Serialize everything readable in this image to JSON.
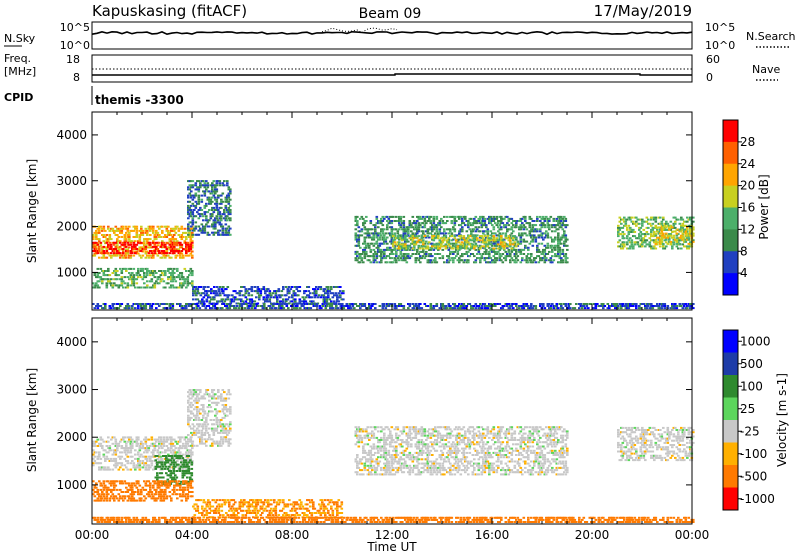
{
  "header": {
    "site": "Kapuskasing (fitACF)",
    "beam": "Beam 09",
    "date": "17/May/2019"
  },
  "param_panels": {
    "nsky": {
      "label": "N.Sky",
      "left_ticks": [
        "10^5",
        "10^0"
      ],
      "right_ticks": [
        "10^5",
        "10^0"
      ],
      "right_label": "N.Search"
    },
    "freq": {
      "label_line1": "Freq.",
      "label_line2": "[MHz]",
      "left_ticks": [
        "18",
        "8"
      ],
      "right_ticks": [
        "60",
        "0"
      ],
      "right_label": "Nave"
    },
    "cpid": {
      "label": "CPID",
      "value": "themis -3300"
    }
  },
  "colors": {
    "power": [
      "#0000ff",
      "#2040c0",
      "#3a8a4a",
      "#4caf6a",
      "#c8d020",
      "#ffa500",
      "#ff6000",
      "#ff0000"
    ],
    "velocity": [
      "#0000ff",
      "#1e3ca8",
      "#2e8a2e",
      "#5cd65c",
      "#c8c8c8",
      "#ffb000",
      "#ff7a00",
      "#ff0000"
    ]
  },
  "chart_data": [
    {
      "type": "heatmap",
      "name": "power",
      "ylabel": "Slant Range [km]",
      "ylim": [
        180,
        4500
      ],
      "yticks": [
        "1000",
        "2000",
        "3000",
        "4000"
      ],
      "x_range": [
        "00:00",
        "24:00"
      ],
      "colorbar_label": "Power [dB]",
      "colorbar_ticks": [
        "4",
        "8",
        "12",
        "16",
        "20",
        "24",
        "28"
      ],
      "colorbar_range": [
        0,
        30
      ],
      "regions": [
        {
          "t_start": 0.0,
          "t_end": 4.0,
          "r_low": 1300,
          "r_high": 2000,
          "value": 20
        },
        {
          "t_start": 0.0,
          "t_end": 4.0,
          "r_low": 1400,
          "r_high": 1650,
          "value": 28
        },
        {
          "t_start": 0.0,
          "t_end": 4.0,
          "r_low": 650,
          "r_high": 1100,
          "value": 12
        },
        {
          "t_start": 3.8,
          "t_end": 5.5,
          "r_low": 1800,
          "r_high": 3000,
          "value": 8
        },
        {
          "t_start": 4.0,
          "t_end": 10.0,
          "r_low": 300,
          "r_high": 700,
          "value": 6
        },
        {
          "t_start": 10.5,
          "t_end": 19.0,
          "r_low": 1200,
          "r_high": 2200,
          "value": 10
        },
        {
          "t_start": 12.0,
          "t_end": 17.0,
          "r_low": 1500,
          "r_high": 1800,
          "value": 16
        },
        {
          "t_start": 21.0,
          "t_end": 24.0,
          "r_low": 1500,
          "r_high": 2200,
          "value": 14
        },
        {
          "t_start": 22.5,
          "t_end": 24.0,
          "r_low": 1600,
          "r_high": 2000,
          "value": 18
        },
        {
          "t_start": 0.0,
          "t_end": 24.0,
          "r_low": 200,
          "r_high": 320,
          "value": 6
        }
      ]
    },
    {
      "type": "heatmap",
      "name": "velocity",
      "ylabel": "Slant Range [km]",
      "xlabel": "Time UT",
      "ylim": [
        180,
        4500
      ],
      "yticks": [
        "1000",
        "2000",
        "3000",
        "4000"
      ],
      "xticks": [
        "00:00",
        "04:00",
        "08:00",
        "12:00",
        "16:00",
        "20:00",
        "00:00"
      ],
      "colorbar_label": "Velocity [m s-1]",
      "colorbar_ticks": [
        "1000",
        "500",
        "100",
        "25",
        "-25",
        "-100",
        "-500",
        "-1000"
      ],
      "regions": [
        {
          "t_start": 0.0,
          "t_end": 4.0,
          "r_low": 1300,
          "r_high": 2000,
          "value": 0
        },
        {
          "t_start": 2.5,
          "t_end": 4.0,
          "r_low": 1000,
          "r_high": 1600,
          "value": 150
        },
        {
          "t_start": 0.0,
          "t_end": 4.0,
          "r_low": 650,
          "r_high": 1100,
          "value": -200
        },
        {
          "t_start": 3.8,
          "t_end": 5.5,
          "r_low": 1800,
          "r_high": 3000,
          "value": 0
        },
        {
          "t_start": 4.0,
          "t_end": 10.0,
          "r_low": 300,
          "r_high": 700,
          "value": -100
        },
        {
          "t_start": 10.5,
          "t_end": 19.0,
          "r_low": 1200,
          "r_high": 2200,
          "value": 0
        },
        {
          "t_start": 21.0,
          "t_end": 24.0,
          "r_low": 1500,
          "r_high": 2200,
          "value": 0
        },
        {
          "t_start": 0.0,
          "t_end": 24.0,
          "r_low": 200,
          "r_high": 320,
          "value": -150
        }
      ]
    }
  ]
}
